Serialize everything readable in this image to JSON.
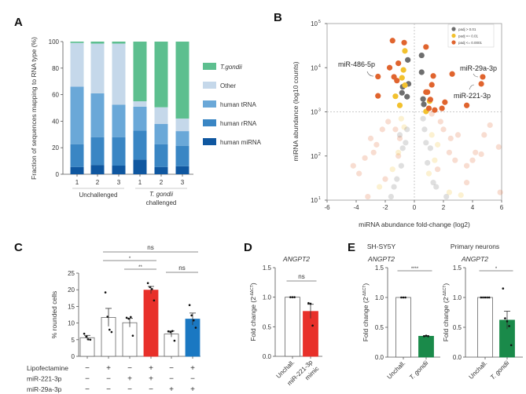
{
  "panels": {
    "A": "A",
    "B": "B",
    "C": "C",
    "D": "D",
    "E": "E"
  },
  "chart_data": [
    {
      "id": "A",
      "type": "bar",
      "stacked": true,
      "ylabel": "Fraction of sequences mapping to RNA type (%)",
      "ylim": [
        0,
        100
      ],
      "yticks": [
        "0",
        "20",
        "40",
        "60",
        "80",
        "100"
      ],
      "categories": [
        "1",
        "2",
        "3",
        "1",
        "2",
        "3"
      ],
      "groups": [
        {
          "label": "Unchallenged",
          "italic": "",
          "rest": ""
        },
        {
          "label": "challenged",
          "italic": "T. gondii"
        }
      ],
      "series": [
        {
          "name": "human miRNA",
          "color": "#0f57a0",
          "values": [
            5.5,
            7,
            6.5,
            11,
            5.5,
            6
          ]
        },
        {
          "name": "human rRNA",
          "color": "#3a86c4",
          "values": [
            17,
            21,
            21.5,
            22,
            17,
            15.5
          ]
        },
        {
          "name": "human tRNA",
          "color": "#6aa8d8",
          "values": [
            43.5,
            33,
            24.5,
            18,
            15.5,
            11
          ]
        },
        {
          "name": "Other",
          "color": "#c5d8ea",
          "values": [
            33,
            37.5,
            46,
            4,
            12.5,
            9.5
          ]
        },
        {
          "name": "T.gondii",
          "color": "#5dbf8f",
          "values": [
            1,
            1.5,
            1.5,
            45,
            49.5,
            58
          ]
        }
      ],
      "legend_order": [
        "T.gondii",
        "Other",
        "human tRNA",
        "human rRNA",
        "human miRNA"
      ],
      "legend": "right"
    },
    {
      "id": "B",
      "type": "scatter",
      "xlabel": "miRNA abundance fold-change (log2)",
      "ylabel": "miRNA abundance (log10 counts)",
      "xlim": [
        -6,
        6
      ],
      "ylim": [
        10,
        100000
      ],
      "yscale": "log",
      "xticks": [
        "-6",
        "-4",
        "-2",
        "0",
        "2",
        "4",
        "6"
      ],
      "yticks": [
        {
          "base": "10",
          "exp": "1"
        },
        {
          "base": "10",
          "exp": "2"
        },
        {
          "base": "10",
          "exp": "3"
        },
        {
          "base": "10",
          "exp": "4"
        },
        {
          "base": "10",
          "exp": "5"
        }
      ],
      "threshold_lines": {
        "x": 0,
        "y": 1000
      },
      "legend": "top-right",
      "categories": [
        {
          "name": "padj > 0.01",
          "color": "#6e6e6e"
        },
        {
          "name": "padj <= 0.01",
          "color": "#f2c12e"
        },
        {
          "name": "padj <= 0.0001",
          "color": "#e0642e"
        }
      ],
      "annotations": [
        {
          "text": "miR-486-5p",
          "x": -2.5,
          "y": 6300
        },
        {
          "text": "miR-29a-3p",
          "x": 4.7,
          "y": 6200
        },
        {
          "text": "miR-221-3p",
          "x": 4.6,
          "y": 4300
        }
      ],
      "points": [
        {
          "x": -1.5,
          "y": 41000,
          "c": 2
        },
        {
          "x": -0.7,
          "y": 37000,
          "c": 2
        },
        {
          "x": 0.8,
          "y": 29500,
          "c": 2
        },
        {
          "x": -1.7,
          "y": 10000,
          "c": 2
        },
        {
          "x": -1.1,
          "y": 12600,
          "c": 2
        },
        {
          "x": -2.5,
          "y": 6300,
          "c": 2
        },
        {
          "x": -1.4,
          "y": 6200,
          "c": 2
        },
        {
          "x": -1.2,
          "y": 5100,
          "c": 2
        },
        {
          "x": -2.5,
          "y": 2300,
          "c": 2
        },
        {
          "x": 1.3,
          "y": 6500,
          "c": 2
        },
        {
          "x": 2.6,
          "y": 7200,
          "c": 2
        },
        {
          "x": 4.7,
          "y": 6200,
          "c": 2
        },
        {
          "x": 4.6,
          "y": 4300,
          "c": 2
        },
        {
          "x": 1.2,
          "y": 4100,
          "c": 2
        },
        {
          "x": 0.8,
          "y": 2800,
          "c": 2
        },
        {
          "x": 0.9,
          "y": 2800,
          "c": 2
        },
        {
          "x": 1.1,
          "y": 1900,
          "c": 2
        },
        {
          "x": 2.1,
          "y": 1650,
          "c": 2
        },
        {
          "x": 3.6,
          "y": 1400,
          "c": 2
        },
        {
          "x": 1.0,
          "y": 1200,
          "c": 2
        },
        {
          "x": 1.4,
          "y": 1100,
          "c": 2
        },
        {
          "x": 1.9,
          "y": 1200,
          "c": 2
        },
        {
          "x": -0.65,
          "y": 24000,
          "c": 1
        },
        {
          "x": -0.75,
          "y": 8900,
          "c": 1
        },
        {
          "x": -0.85,
          "y": 5900,
          "c": 1
        },
        {
          "x": -0.65,
          "y": 4000,
          "c": 1
        },
        {
          "x": -1.3,
          "y": 2250,
          "c": 1
        },
        {
          "x": -1.0,
          "y": 1400,
          "c": 1
        },
        {
          "x": 0.8,
          "y": 1020,
          "c": 1
        },
        {
          "x": 1.05,
          "y": 1750,
          "c": 1
        },
        {
          "x": -0.45,
          "y": 15000,
          "c": 0
        },
        {
          "x": 0.5,
          "y": 19000,
          "c": 0
        },
        {
          "x": 0.5,
          "y": 7900,
          "c": 0
        },
        {
          "x": -0.4,
          "y": 4300,
          "c": 0
        },
        {
          "x": -0.8,
          "y": 3700,
          "c": 0
        },
        {
          "x": -0.85,
          "y": 2700,
          "c": 0
        },
        {
          "x": -0.5,
          "y": 2200,
          "c": 0
        },
        {
          "x": 0.6,
          "y": 1950,
          "c": 0
        },
        {
          "x": 0.65,
          "y": 1480,
          "c": 0
        },
        {
          "x": -1.0,
          "y": 300,
          "c": 0
        },
        {
          "x": -0.8,
          "y": 150,
          "c": 0
        },
        {
          "x": -0.6,
          "y": 200,
          "c": 0
        },
        {
          "x": -0.9,
          "y": 60,
          "c": 0
        },
        {
          "x": -1.2,
          "y": 30,
          "c": 0
        },
        {
          "x": -1.4,
          "y": 20,
          "c": 0
        },
        {
          "x": -0.5,
          "y": 400,
          "c": 0
        },
        {
          "x": 0.7,
          "y": 400,
          "c": 0
        },
        {
          "x": 0.8,
          "y": 200,
          "c": 0
        },
        {
          "x": 0.9,
          "y": 70,
          "c": 0
        },
        {
          "x": 1.3,
          "y": 25,
          "c": 0
        },
        {
          "x": 1.5,
          "y": 20,
          "c": 0
        },
        {
          "x": 2.2,
          "y": 12,
          "c": 0
        },
        {
          "x": -1.6,
          "y": 12,
          "c": 0
        },
        {
          "x": 0.6,
          "y": 700,
          "c": 0
        },
        {
          "x": 1.1,
          "y": 150,
          "c": 0
        },
        {
          "x": -0.9,
          "y": 700,
          "c": 1
        },
        {
          "x": -1.1,
          "y": 120,
          "c": 1
        },
        {
          "x": -1.5,
          "y": 50,
          "c": 1
        },
        {
          "x": -2.4,
          "y": 20,
          "c": 1
        },
        {
          "x": 1.2,
          "y": 300,
          "c": 1
        },
        {
          "x": 1.4,
          "y": 80,
          "c": 1
        },
        {
          "x": 1.0,
          "y": 40,
          "c": 1
        },
        {
          "x": 2.4,
          "y": 15,
          "c": 1
        },
        {
          "x": -0.7,
          "y": 450,
          "c": 1
        },
        {
          "x": 3.2,
          "y": 13,
          "c": 1
        },
        {
          "x": 1.6,
          "y": 180,
          "c": 1
        },
        {
          "x": -4.2,
          "y": 60,
          "c": 2
        },
        {
          "x": -3.8,
          "y": 40,
          "c": 2
        },
        {
          "x": -3.4,
          "y": 90,
          "c": 2
        },
        {
          "x": -3.0,
          "y": 250,
          "c": 2
        },
        {
          "x": -2.6,
          "y": 180,
          "c": 2
        },
        {
          "x": -2.2,
          "y": 400,
          "c": 2
        },
        {
          "x": -1.8,
          "y": 600,
          "c": 2
        },
        {
          "x": -1.3,
          "y": 400,
          "c": 2
        },
        {
          "x": -1.0,
          "y": 250,
          "c": 2
        },
        {
          "x": -2.8,
          "y": 120,
          "c": 2
        },
        {
          "x": -3.2,
          "y": 12,
          "c": 2
        },
        {
          "x": 2.0,
          "y": 400,
          "c": 2
        },
        {
          "x": 2.5,
          "y": 250,
          "c": 2
        },
        {
          "x": 3.0,
          "y": 300,
          "c": 2
        },
        {
          "x": 3.6,
          "y": 60,
          "c": 2
        },
        {
          "x": 4.2,
          "y": 120,
          "c": 2
        },
        {
          "x": 4.8,
          "y": 300,
          "c": 2
        },
        {
          "x": 5.2,
          "y": 500,
          "c": 2
        },
        {
          "x": 5.8,
          "y": 160,
          "c": 2
        },
        {
          "x": 5.9,
          "y": 15,
          "c": 2
        },
        {
          "x": 3.6,
          "y": 25,
          "c": 2
        },
        {
          "x": 4.0,
          "y": 80,
          "c": 2
        },
        {
          "x": 2.8,
          "y": 80,
          "c": 2
        },
        {
          "x": 1.8,
          "y": 600,
          "c": 2
        },
        {
          "x": 1.6,
          "y": 50,
          "c": 2
        },
        {
          "x": -2.0,
          "y": 30,
          "c": 2
        },
        {
          "x": -1.1,
          "y": 100,
          "c": 2
        },
        {
          "x": 2.4,
          "y": 120,
          "c": 2
        },
        {
          "x": 4.6,
          "y": 110,
          "c": 2
        },
        {
          "x": 1.2,
          "y": 900,
          "c": 2
        }
      ]
    },
    {
      "id": "C",
      "type": "bar",
      "ylabel": "% rounded cells",
      "ylim": [
        0,
        25
      ],
      "yticks": [
        "0",
        "5",
        "10",
        "15",
        "20",
        "25"
      ],
      "conditions": [
        {
          "label": "Lipofectamine",
          "signs": [
            "−",
            "+",
            "−",
            "+",
            "−",
            "+"
          ]
        },
        {
          "label": "miR-221-3p",
          "signs": [
            "−",
            "−",
            "+",
            "+",
            "−",
            "−"
          ]
        },
        {
          "label": "miR-29a-3p",
          "signs": [
            "−",
            "−",
            "−",
            "−",
            "+",
            "+"
          ]
        }
      ],
      "bars": [
        {
          "mean": 5.6,
          "sem": 0.7,
          "color": "#ffffff",
          "points": [
            6.8,
            5.9,
            5.1,
            5.0
          ]
        },
        {
          "mean": 11.7,
          "sem": 2.7,
          "color": "#ffffff",
          "points": [
            19.2,
            11.9,
            8.0,
            7.3
          ]
        },
        {
          "mean": 10.1,
          "sem": 1.3,
          "color": "#ffffff",
          "points": [
            11.6,
            11.3,
            11.8,
            6.2
          ]
        },
        {
          "mean": 19.9,
          "sem": 1.1,
          "color": "#e8302a",
          "points": [
            22.0,
            20.8,
            20.2,
            16.8
          ]
        },
        {
          "mean": 6.7,
          "sem": 0.9,
          "color": "#ffffff",
          "points": [
            7.5,
            7.3,
            7.6,
            4.7
          ]
        },
        {
          "mean": 11.2,
          "sem": 1.8,
          "color": "#1a78c2",
          "points": [
            15.4,
            12.3,
            10.8,
            8.6
          ]
        }
      ],
      "significance": [
        {
          "from": 1,
          "to": 5,
          "label": "ns"
        },
        {
          "from": 1,
          "to": 3,
          "label": "*"
        },
        {
          "from": 2,
          "to": 3,
          "label": "**"
        },
        {
          "from": 4,
          "to": 5,
          "label": "ns"
        }
      ]
    },
    {
      "id": "D",
      "type": "bar",
      "title": "ANGPT2",
      "ylabel": "Fold change",
      "ylabel_unit": "(2",
      "ylabel_exp": "-ΔΔCT",
      "ylim": [
        0,
        1.5
      ],
      "yticks": [
        "0.0",
        "0.5",
        "1.0",
        "1.5"
      ],
      "categories": [
        "Unchall.",
        "miR-221-3p mimic"
      ],
      "bars": [
        {
          "mean": 1.0,
          "sem": 0,
          "color": "#ffffff",
          "points": [
            1.0,
            1.0,
            1.0
          ]
        },
        {
          "mean": 0.76,
          "sem": 0.12,
          "color": "#e8302a",
          "points": [
            0.9,
            0.89,
            0.52
          ]
        }
      ],
      "significance": [
        {
          "from": 0,
          "to": 1,
          "label": "ns"
        }
      ]
    },
    {
      "id": "E1",
      "type": "bar",
      "subtitle": "SH-SY5Y",
      "title": "ANGPT2",
      "ylabel": "Fold change",
      "ylabel_unit": "(2",
      "ylabel_exp": "-ΔΔCT",
      "ylim": [
        0,
        1.5
      ],
      "yticks": [
        "0.0",
        "0.5",
        "1.0",
        "1.5"
      ],
      "categories": [
        "Unchall.",
        "T. gondii"
      ],
      "bars": [
        {
          "mean": 1.0,
          "sem": 0,
          "color": "#ffffff",
          "points": [
            1.0,
            1.0,
            1.0
          ]
        },
        {
          "mean": 0.35,
          "sem": 0.01,
          "color": "#1a8a4a",
          "points": [
            0.35,
            0.36,
            0.35
          ]
        }
      ],
      "significance": [
        {
          "from": 0,
          "to": 1,
          "label": "****"
        }
      ]
    },
    {
      "id": "E2",
      "type": "bar",
      "subtitle": "Primary neurons",
      "title": "ANGPT2",
      "ylabel": "Fold change",
      "ylabel_unit": "(2",
      "ylabel_exp": "-ΔΔCT",
      "ylim": [
        0,
        1.5
      ],
      "yticks": [
        "0.0",
        "0.5",
        "1.0",
        "1.5"
      ],
      "categories": [
        "Unchall.",
        "T. gondii"
      ],
      "bars": [
        {
          "mean": 1.0,
          "sem": 0,
          "color": "#ffffff",
          "points": [
            1.0,
            1.0,
            1.0,
            1.0,
            1.0
          ]
        },
        {
          "mean": 0.62,
          "sem": 0.15,
          "color": "#1a8a4a",
          "points": [
            1.15,
            0.65,
            0.6,
            0.52,
            0.2
          ]
        }
      ],
      "significance": [
        {
          "from": 0,
          "to": 1,
          "label": "*"
        }
      ]
    }
  ]
}
